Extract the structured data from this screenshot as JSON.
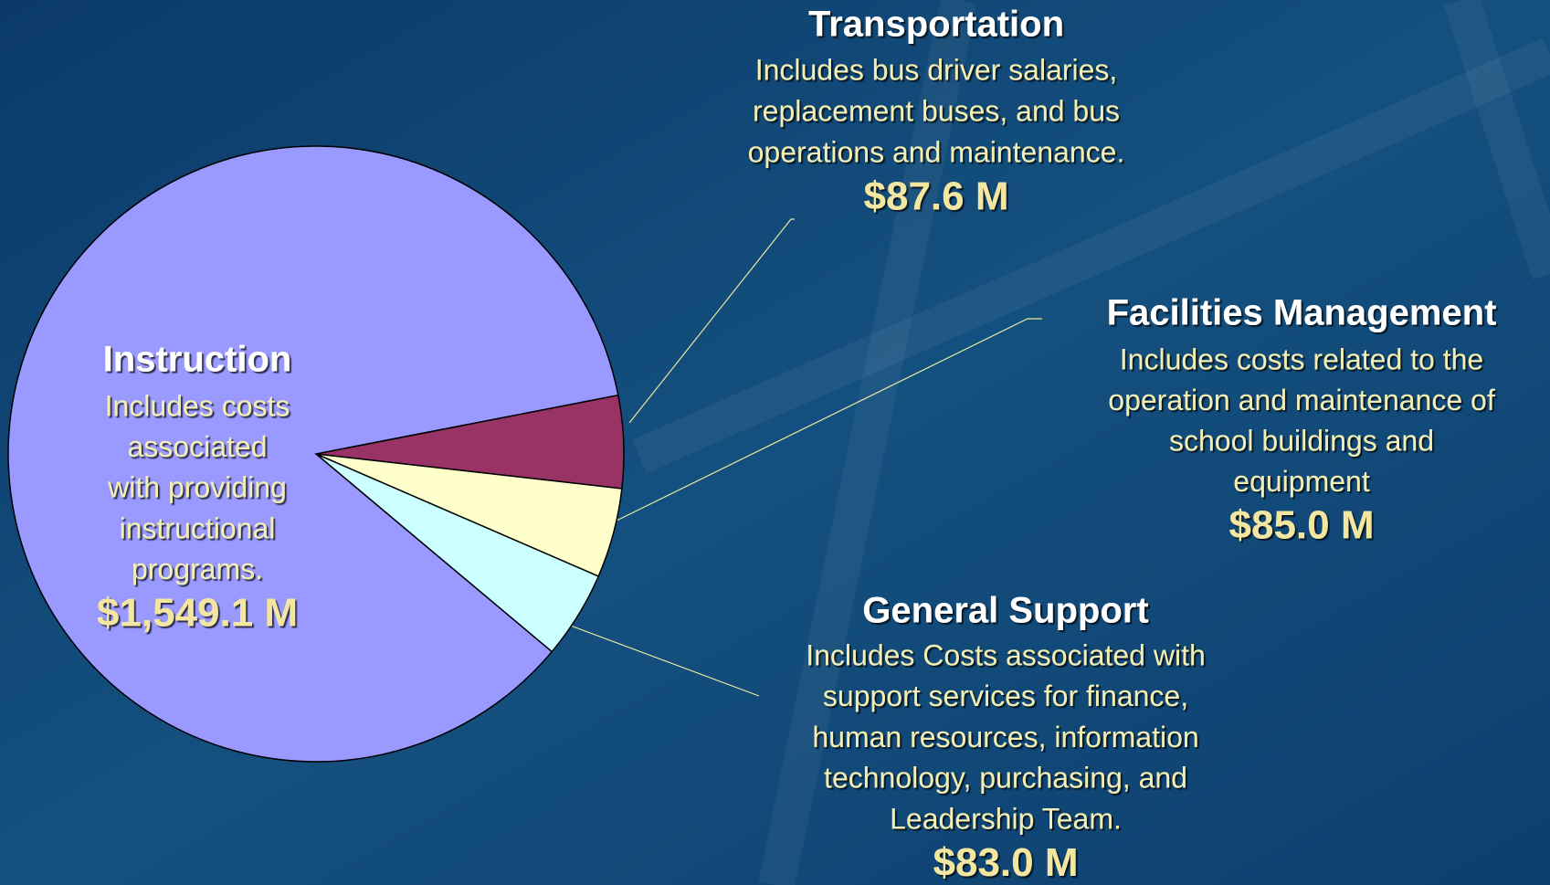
{
  "chart_data": {
    "type": "pie",
    "categories": [
      "Transportation",
      "Facilities Management",
      "General Support",
      "Instruction"
    ],
    "values": [
      87.6,
      85.0,
      83.0,
      1549.1
    ],
    "value_labels": [
      "$87.6 M",
      "$85.0 M",
      "$83.0 M",
      "$1,549.1 M"
    ],
    "descriptions": [
      [
        "Includes bus driver salaries,",
        "replacement buses, and bus",
        "operations and maintenance."
      ],
      [
        "Includes costs related to the",
        "operation and maintenance of",
        "school buildings and",
        "equipment"
      ],
      [
        "Includes Costs associated with",
        "support services for finance,",
        "human resources, information",
        "technology, purchasing, and",
        "Leadership Team."
      ],
      [
        "Includes costs",
        "associated",
        "with providing",
        "instructional",
        "programs."
      ]
    ],
    "colors": [
      "#993366",
      "#ffffcc",
      "#ccffff",
      "#9999ff"
    ]
  }
}
